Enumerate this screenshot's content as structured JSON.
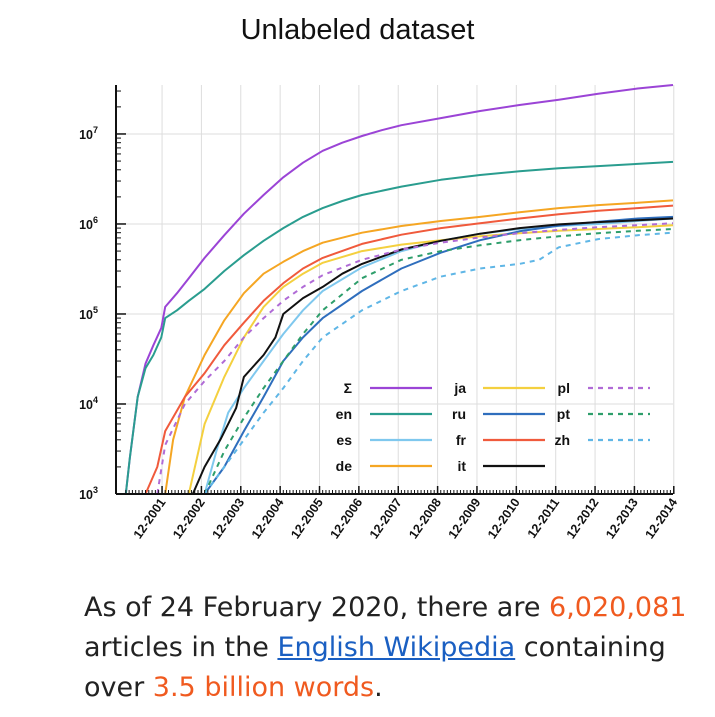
{
  "page": {
    "title": "Unlabeled dataset",
    "caption": {
      "part1": "As of 24 February 2020, there are ",
      "count": "6,020,081",
      "part2": " articles in the ",
      "link": "English Wikipedia",
      "part3": " containing over ",
      "words": "3.5 billion words",
      "part4": "."
    }
  },
  "chart_data": {
    "type": "line",
    "yscale": "log",
    "ylim": [
      1000,
      35000000
    ],
    "xlim": [
      2000.75,
      2014.9
    ],
    "yticks": [
      {
        "value": 1000,
        "base": "10",
        "exp": "3"
      },
      {
        "value": 10000,
        "base": "10",
        "exp": "4"
      },
      {
        "value": 100000,
        "base": "10",
        "exp": "5"
      },
      {
        "value": 1000000,
        "base": "10",
        "exp": "6"
      },
      {
        "value": 10000000,
        "base": "10",
        "exp": "7"
      }
    ],
    "xticks": [
      {
        "value": 2001.92,
        "label": "12-2001"
      },
      {
        "value": 2002.92,
        "label": "12-2002"
      },
      {
        "value": 2003.92,
        "label": "12-2003"
      },
      {
        "value": 2004.92,
        "label": "12-2004"
      },
      {
        "value": 2005.92,
        "label": "12-2005"
      },
      {
        "value": 2006.92,
        "label": "12-2006"
      },
      {
        "value": 2007.92,
        "label": "12-2007"
      },
      {
        "value": 2008.92,
        "label": "12-2008"
      },
      {
        "value": 2009.92,
        "label": "12-2009"
      },
      {
        "value": 2010.92,
        "label": "12-2010"
      },
      {
        "value": 2011.92,
        "label": "12-2011"
      },
      {
        "value": 2012.92,
        "label": "12-2012"
      },
      {
        "value": 2013.92,
        "label": "12-2013"
      },
      {
        "value": 2014.92,
        "label": "12-2014"
      }
    ],
    "grid": true,
    "legend_position": "lower-right",
    "series": [
      {
        "name": "Σ",
        "color": "#9b44d6",
        "dash": "solid",
        "x": [
          2001.0,
          2001.1,
          2001.3,
          2001.5,
          2001.7,
          2001.9,
          2002.0,
          2002.3,
          2002.6,
          2003.0,
          2003.5,
          2004.0,
          2004.5,
          2005.0,
          2005.5,
          2006.0,
          2006.5,
          2007.0,
          2007.5,
          2008.0,
          2009.0,
          2010.0,
          2011.0,
          2012.0,
          2013.0,
          2014.0,
          2014.9
        ],
        "y": [
          1000,
          2500,
          12000,
          28000,
          45000,
          70000,
          120000,
          170000,
          250000,
          420000,
          750000,
          1300000,
          2100000,
          3300000,
          4800000,
          6500000,
          8000000,
          9500000,
          11000000,
          12500000,
          15000000,
          18000000,
          21000000,
          24000000,
          28000000,
          32000000,
          35000000
        ]
      },
      {
        "name": "en",
        "color": "#2a9d8f",
        "dash": "solid",
        "x": [
          2001.0,
          2001.1,
          2001.3,
          2001.5,
          2001.7,
          2001.9,
          2002.0,
          2002.3,
          2002.6,
          2003.0,
          2003.5,
          2004.0,
          2004.5,
          2005.0,
          2005.5,
          2006.0,
          2006.5,
          2007.0,
          2008.0,
          2009.0,
          2010.0,
          2011.0,
          2012.0,
          2013.0,
          2014.0,
          2014.9
        ],
        "y": [
          1000,
          2500,
          12000,
          25000,
          35000,
          55000,
          90000,
          110000,
          140000,
          190000,
          300000,
          450000,
          650000,
          900000,
          1200000,
          1500000,
          1800000,
          2100000,
          2600000,
          3100000,
          3500000,
          3850000,
          4150000,
          4400000,
          4650000,
          4900000
        ]
      },
      {
        "name": "es",
        "color": "#7fc8ee",
        "dash": "solid",
        "x": [
          2003.0,
          2003.3,
          2003.6,
          2004.0,
          2004.5,
          2005.0,
          2005.5,
          2006.0,
          2007.0,
          2008.0,
          2009.0,
          2010.0,
          2011.0,
          2012.0,
          2013.0,
          2014.0,
          2014.9
        ],
        "y": [
          1000,
          3000,
          8000,
          15000,
          30000,
          60000,
          110000,
          180000,
          330000,
          500000,
          650000,
          780000,
          880000,
          950000,
          1000000,
          1080000,
          1150000
        ]
      },
      {
        "name": "de",
        "color": "#f5a623",
        "dash": "solid",
        "x": [
          2002.0,
          2002.2,
          2002.5,
          2003.0,
          2003.5,
          2004.0,
          2004.5,
          2005.0,
          2005.5,
          2006.0,
          2007.0,
          2008.0,
          2009.0,
          2010.0,
          2011.0,
          2012.0,
          2013.0,
          2014.0,
          2014.9
        ],
        "y": [
          1000,
          4000,
          12000,
          35000,
          85000,
          170000,
          280000,
          380000,
          500000,
          620000,
          800000,
          950000,
          1080000,
          1200000,
          1350000,
          1500000,
          1620000,
          1720000,
          1830000
        ]
      },
      {
        "name": "ja",
        "color": "#f4d03f",
        "dash": "solid",
        "x": [
          2002.6,
          2003.0,
          2003.5,
          2004.0,
          2004.5,
          2005.0,
          2005.5,
          2006.0,
          2007.0,
          2008.0,
          2009.0,
          2010.0,
          2011.0,
          2012.0,
          2013.0,
          2014.0,
          2014.9
        ],
        "y": [
          1000,
          6000,
          20000,
          55000,
          120000,
          200000,
          280000,
          370000,
          500000,
          590000,
          660000,
          730000,
          790000,
          840000,
          880000,
          920000,
          970000
        ]
      },
      {
        "name": "ru",
        "color": "#2f6ebd",
        "dash": "solid",
        "x": [
          2003.0,
          2003.5,
          2004.0,
          2004.5,
          2005.0,
          2005.5,
          2006.0,
          2007.0,
          2008.0,
          2009.0,
          2010.0,
          2011.0,
          2012.0,
          2013.0,
          2014.0,
          2014.9
        ],
        "y": [
          1000,
          2000,
          5000,
          12000,
          30000,
          55000,
          90000,
          180000,
          320000,
          480000,
          660000,
          830000,
          960000,
          1060000,
          1150000,
          1200000
        ]
      },
      {
        "name": "fr",
        "color": "#f05a3c",
        "dash": "solid",
        "x": [
          2001.5,
          2001.8,
          2002.0,
          2002.5,
          2003.0,
          2003.5,
          2004.0,
          2004.5,
          2005.0,
          2005.5,
          2006.0,
          2007.0,
          2008.0,
          2009.0,
          2010.0,
          2011.0,
          2012.0,
          2013.0,
          2014.0,
          2014.9
        ],
        "y": [
          1000,
          2000,
          5000,
          12000,
          22000,
          45000,
          80000,
          140000,
          220000,
          320000,
          420000,
          600000,
          760000,
          900000,
          1020000,
          1150000,
          1280000,
          1400000,
          1500000,
          1600000
        ]
      },
      {
        "name": "it",
        "color": "#111111",
        "dash": "solid",
        "x": [
          2002.7,
          2003.0,
          2003.4,
          2003.8,
          2004.0,
          2004.5,
          2004.8,
          2005.0,
          2005.5,
          2006.0,
          2006.5,
          2007.0,
          2008.0,
          2009.0,
          2010.0,
          2011.0,
          2012.0,
          2013.0,
          2014.0,
          2014.9
        ],
        "y": [
          1000,
          2000,
          4000,
          9000,
          20000,
          35000,
          55000,
          100000,
          150000,
          200000,
          280000,
          360000,
          520000,
          650000,
          780000,
          900000,
          990000,
          1050000,
          1100000,
          1150000
        ]
      },
      {
        "name": "pl",
        "color": "#b06bd6",
        "dash": "5,5",
        "x": [
          2001.8,
          2002.0,
          2002.5,
          2003.0,
          2003.5,
          2004.0,
          2004.5,
          2005.0,
          2005.5,
          2006.0,
          2007.0,
          2008.0,
          2009.0,
          2010.0,
          2011.0,
          2012.0,
          2013.0,
          2014.0,
          2014.9
        ],
        "y": [
          1000,
          3500,
          10000,
          18000,
          30000,
          55000,
          90000,
          140000,
          200000,
          270000,
          400000,
          520000,
          620000,
          710000,
          790000,
          860000,
          920000,
          970000,
          1020000
        ]
      },
      {
        "name": "pt",
        "color": "#2e9e6b",
        "dash": "5,5",
        "x": [
          2003.0,
          2003.5,
          2004.0,
          2004.5,
          2005.0,
          2005.5,
          2006.0,
          2007.0,
          2008.0,
          2009.0,
          2010.0,
          2011.0,
          2012.0,
          2013.0,
          2014.0,
          2014.9
        ],
        "y": [
          1000,
          3000,
          7000,
          15000,
          30000,
          60000,
          110000,
          250000,
          400000,
          500000,
          580000,
          660000,
          730000,
          790000,
          840000,
          880000
        ]
      },
      {
        "name": "zh",
        "color": "#5fb6e6",
        "dash": "5,5",
        "x": [
          2003.0,
          2003.5,
          2004.0,
          2004.5,
          2005.0,
          2005.5,
          2006.0,
          2007.0,
          2008.0,
          2009.0,
          2010.0,
          2011.0,
          2011.5,
          2012.0,
          2013.0,
          2014.0,
          2014.9
        ],
        "y": [
          1000,
          2000,
          4000,
          8000,
          15000,
          30000,
          55000,
          110000,
          180000,
          260000,
          320000,
          360000,
          400000,
          550000,
          680000,
          750000,
          800000
        ]
      }
    ]
  }
}
